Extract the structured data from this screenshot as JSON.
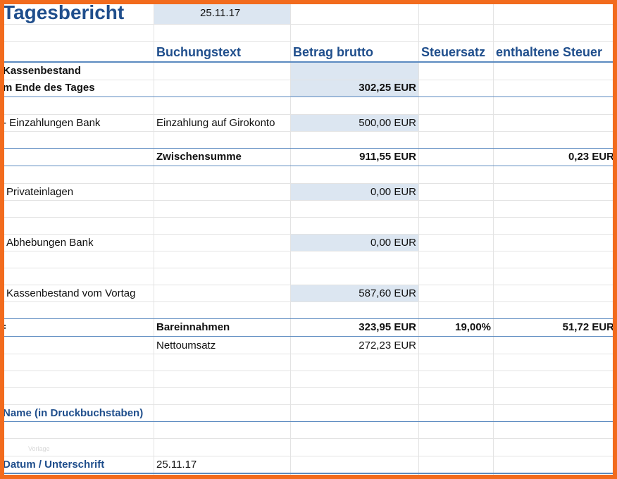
{
  "title": "Tagesbericht",
  "report_date": "25.11.17",
  "headers": {
    "buchungstext": "Buchungstext",
    "betrag_brutto": "Betrag brutto",
    "steuersatz": "Steuersatz",
    "enthaltene_steuer": "enthaltene Steuer"
  },
  "rows": {
    "kassenbestand_line1": "Kassenbestand",
    "kassenbestand_line2": "m Ende des Tages",
    "kassenbestand_amount": "302,25 EUR",
    "einzahlungen_label": "- Einzahlungen Bank",
    "einzahlungen_text": "Einzahlung auf Girokonto",
    "einzahlungen_amount": "500,00 EUR",
    "zwischensumme_label": "Zwischensumme",
    "zwischensumme_amount": "911,55 EUR",
    "zwischensumme_tax": "0,23 EUR",
    "privateinlagen_label": "Privateinlagen",
    "privateinlagen_amount": "0,00 EUR",
    "abhebungen_label": "Abhebungen Bank",
    "abhebungen_amount": "0,00 EUR",
    "vortag_label": "Kassenbestand vom Vortag",
    "vortag_amount": "587,60 EUR",
    "bareinnahmen_marker": "=",
    "bareinnahmen_label": "Bareinnahmen",
    "bareinnahmen_amount": "323,95 EUR",
    "bareinnahmen_rate": "19,00%",
    "bareinnahmen_tax": "51,72 EUR",
    "nettoumsatz_label": "Nettoumsatz",
    "nettoumsatz_amount": "272,23 EUR"
  },
  "footer": {
    "name_label": "Name (in Druckbuchstaben)",
    "ghost_text": "Vorlage",
    "datum_label": "Datum / Unterschrift",
    "datum_value": "25.11.17"
  },
  "colors": {
    "frame": "#f26b1d",
    "header_text": "#1f4e8c",
    "input_fill": "#dce6f1",
    "gridline": "#e3e3e3",
    "rule_blue": "#5b8ac0"
  }
}
